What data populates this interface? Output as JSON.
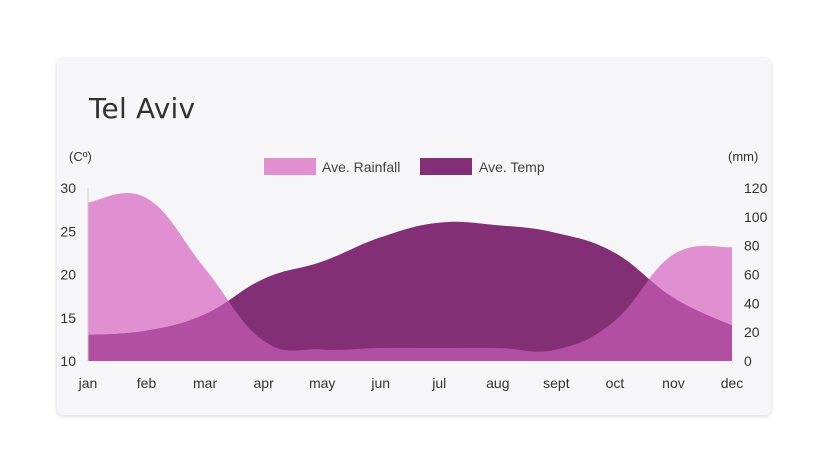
{
  "chart_data": {
    "type": "area",
    "title": "Tel Aviv",
    "categories": [
      "jan",
      "feb",
      "mar",
      "apr",
      "may",
      "jun",
      "jul",
      "aug",
      "sept",
      "oct",
      "nov",
      "dec"
    ],
    "y_left": {
      "label": "(Cº)",
      "min": 10,
      "max": 30,
      "ticks": [
        30,
        25,
        20,
        15,
        10
      ]
    },
    "y_right": {
      "label": "(mm)",
      "min": 0,
      "max": 120,
      "ticks": [
        120,
        100,
        80,
        60,
        40,
        20,
        0
      ]
    },
    "series": [
      {
        "name": "Ave. Rainfall",
        "axis": "right",
        "color": "#e08fd0",
        "values": [
          110,
          113,
          64,
          14,
          8,
          9,
          9,
          9,
          8,
          28,
          74,
          79
        ]
      },
      {
        "name": "Ave. Temp",
        "axis": "left",
        "color": "#832f75",
        "values": [
          13.0,
          13.5,
          15.4,
          19.5,
          21.5,
          24.3,
          26.0,
          25.7,
          24.8,
          22.5,
          17.3,
          14.1
        ]
      }
    ],
    "overlap_color": "#b24fa3",
    "legend_position": "top-center",
    "grid": false
  }
}
